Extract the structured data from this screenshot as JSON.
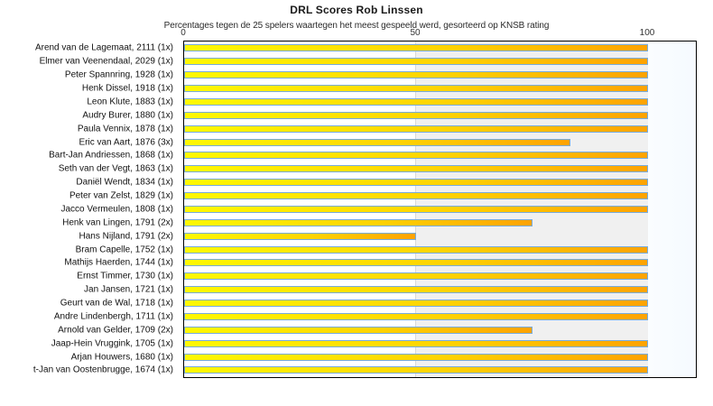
{
  "chart_data": {
    "type": "bar",
    "orientation": "horizontal",
    "title": "DRL Scores Rob Linssen",
    "subtitle": "Percentages tegen de 25 spelers waartegen het meest gespeeld werd, gesorteerd op KNSB rating",
    "xlabel": "",
    "ylabel": "",
    "xlim": [
      0,
      110
    ],
    "grid": "vertical gridline at 50; shaded band from 50 to 100",
    "legend": false,
    "x_ticks": [
      {
        "label": "0",
        "value": 0
      },
      {
        "label": "50",
        "value": 50
      },
      {
        "label": "100",
        "value": 100
      }
    ],
    "categories": [
      "Arend van de Lagemaat, 2111 (1x)",
      "Elmer van Veenendaal, 2029 (1x)",
      "Peter Spannring, 1928 (1x)",
      "Henk Dissel, 1918 (1x)",
      "Leon Klute, 1883 (1x)",
      "Audry Burer, 1880 (1x)",
      "Paula Vennix, 1878 (1x)",
      "Eric van Aart, 1876 (3x)",
      "Bart-Jan Andriessen, 1868 (1x)",
      "Seth van der Vegt, 1863 (1x)",
      "Daniël Wendt, 1834 (1x)",
      "Peter van Zelst, 1829 (1x)",
      "Jacco Vermeulen, 1808 (1x)",
      "Henk van Lingen, 1791 (2x)",
      "Hans Nijland, 1791 (2x)",
      "Bram Capelle, 1752 (1x)",
      "Mathijs Haerden, 1744 (1x)",
      "Ernst Timmer, 1730 (1x)",
      "Jan Jansen, 1721 (1x)",
      "Geurt van de Wal, 1718 (1x)",
      "Andre Lindenbergh, 1711 (1x)",
      "Arnold van Gelder, 1709 (2x)",
      "Jaap-Hein Vruggink, 1705 (1x)",
      "Arjan Houwers, 1680 (1x)",
      "t-Jan van Oostenbrugge, 1674 (1x)"
    ],
    "values": [
      100,
      100,
      100,
      100,
      100,
      100,
      100,
      83.3,
      100,
      100,
      100,
      100,
      100,
      75,
      50,
      100,
      100,
      100,
      100,
      100,
      100,
      75,
      100,
      100,
      100
    ],
    "colors": {
      "bar_fill_left": "#fff800",
      "bar_fill_mid": "#ffd400",
      "bar_fill_right": "#ffa300",
      "bar_border": "#77abdb",
      "plot_border": "#000000",
      "band_left": "#ffffff",
      "band_right": "#f0f0f0",
      "band_overflow": "#fafdff",
      "gridline": "#d9d9d9",
      "title_text": "#1a1a1a",
      "label_text": "#111111"
    }
  }
}
